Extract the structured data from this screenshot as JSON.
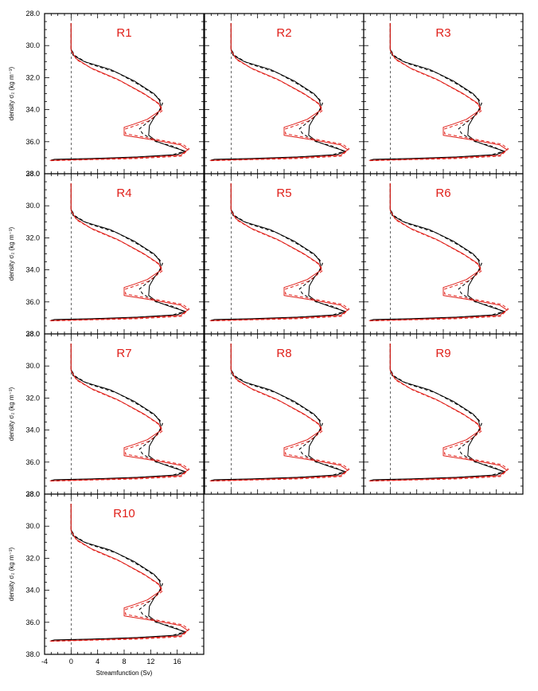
{
  "chart_data": {
    "type": "line",
    "ylabel": "density σ₂ (kg m⁻³)",
    "xlabel": "Streamfunction (Sv)",
    "ylim": [
      28.0,
      38.0
    ],
    "y_inverted": true,
    "xlim": [
      -4,
      20
    ],
    "y_ticks": [
      "28.0",
      "30.0",
      "32.0",
      "34.0",
      "36.0",
      "38.0"
    ],
    "x_ticks": [
      "-4",
      "0",
      "4",
      "8",
      "12",
      "16"
    ],
    "zero_line": {
      "x": 0,
      "style": "dashed"
    },
    "colors": {
      "black_series": "#000000",
      "red_series": "#e0201a",
      "panel_label": "#e0201a"
    },
    "panels": [
      {
        "label": "R1"
      },
      {
        "label": "R2"
      },
      {
        "label": "R3"
      },
      {
        "label": "R4"
      },
      {
        "label": "R5"
      },
      {
        "label": "R6"
      },
      {
        "label": "R7"
      },
      {
        "label": "R8"
      },
      {
        "label": "R9"
      },
      {
        "label": "R10"
      }
    ],
    "series": [
      {
        "color": "black",
        "dash": "solid",
        "points": [
          [
            0,
            28.6
          ],
          [
            0,
            30.2
          ],
          [
            0.3,
            30.6
          ],
          [
            2,
            31.0
          ],
          [
            6,
            31.5
          ],
          [
            9.5,
            32.2
          ],
          [
            12.5,
            33.0
          ],
          [
            13.3,
            33.4
          ],
          [
            13.6,
            33.9
          ],
          [
            12.5,
            34.5
          ],
          [
            11.8,
            35.0
          ],
          [
            11.7,
            35.6
          ],
          [
            13,
            36.0
          ],
          [
            15,
            36.3
          ],
          [
            17.3,
            36.6
          ],
          [
            16,
            36.8
          ],
          [
            10,
            36.95
          ],
          [
            3,
            37.05
          ],
          [
            -2.5,
            37.1
          ],
          [
            -3.0,
            37.15
          ]
        ]
      },
      {
        "color": "black",
        "dash": "dashed",
        "points": [
          [
            0,
            28.6
          ],
          [
            0,
            30.2
          ],
          [
            0.5,
            30.6
          ],
          [
            2.5,
            31.1
          ],
          [
            7,
            31.7
          ],
          [
            10.5,
            32.5
          ],
          [
            13,
            33.2
          ],
          [
            13.8,
            33.6
          ],
          [
            13,
            34.3
          ],
          [
            11.5,
            34.8
          ],
          [
            10.3,
            35.2
          ],
          [
            10.8,
            35.5
          ],
          [
            12.8,
            36.0
          ],
          [
            15.5,
            36.3
          ],
          [
            17,
            36.6
          ],
          [
            15,
            36.85
          ],
          [
            8,
            37.0
          ],
          [
            1,
            37.08
          ],
          [
            -3.0,
            37.15
          ]
        ]
      },
      {
        "color": "red",
        "dash": "solid",
        "points": [
          [
            0,
            28.6
          ],
          [
            0,
            30.3
          ],
          [
            0.7,
            30.8
          ],
          [
            3,
            31.4
          ],
          [
            7,
            32.1
          ],
          [
            11,
            33.0
          ],
          [
            13.2,
            33.6
          ],
          [
            13.6,
            34.0
          ],
          [
            11.5,
            34.6
          ],
          [
            9.5,
            34.9
          ],
          [
            8,
            35.1
          ],
          [
            8,
            35.6
          ],
          [
            12.5,
            35.9
          ],
          [
            16.5,
            36.2
          ],
          [
            17.6,
            36.5
          ],
          [
            16.5,
            36.85
          ],
          [
            10,
            37.0
          ],
          [
            3,
            37.1
          ],
          [
            -3.2,
            37.17
          ]
        ]
      },
      {
        "color": "red",
        "dash": "dashed",
        "points": [
          [
            0,
            28.6
          ],
          [
            0,
            30.3
          ],
          [
            0.9,
            30.9
          ],
          [
            3.4,
            31.5
          ],
          [
            7.4,
            32.2
          ],
          [
            11.3,
            33.1
          ],
          [
            13.4,
            33.7
          ],
          [
            13.8,
            34.05
          ],
          [
            11.7,
            34.7
          ],
          [
            9.7,
            35.0
          ],
          [
            8.2,
            35.2
          ],
          [
            8.2,
            35.5
          ],
          [
            12.8,
            35.85
          ],
          [
            16.8,
            36.15
          ],
          [
            17.8,
            36.45
          ],
          [
            16.6,
            36.9
          ],
          [
            10,
            37.05
          ],
          [
            3,
            37.12
          ],
          [
            -3.2,
            37.19
          ]
        ]
      }
    ]
  }
}
